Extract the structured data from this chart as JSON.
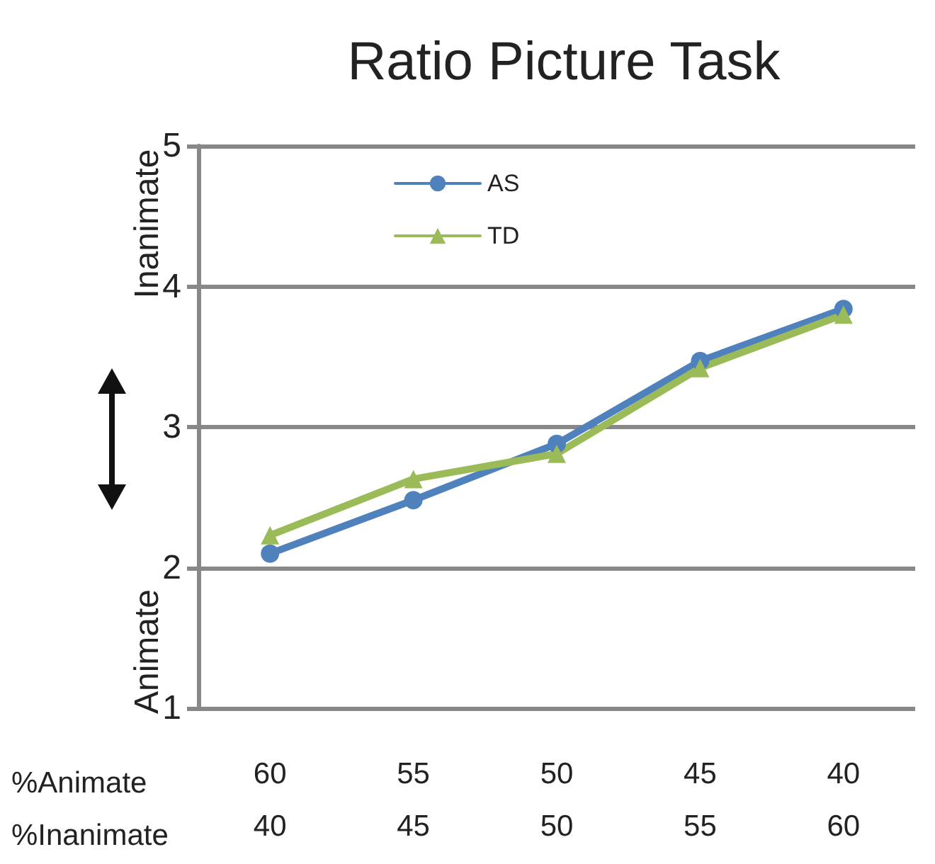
{
  "chart_data": {
    "type": "line",
    "title": "Ratio Picture Task",
    "categories": [
      "60\n40",
      "55\n45",
      "50\n50",
      "45\n55",
      "40\n60"
    ],
    "series": [
      {
        "name": "AS",
        "color": "#4f81bd",
        "marker": "circle",
        "values": [
          2.1,
          2.48,
          2.88,
          3.47,
          3.84
        ]
      },
      {
        "name": "TD",
        "color": "#9bbb59",
        "marker": "triangle",
        "values": [
          2.23,
          2.63,
          2.81,
          3.42,
          3.8
        ]
      }
    ],
    "ylim": [
      1,
      5
    ],
    "yticks": [
      1,
      2,
      3,
      4,
      5
    ],
    "grid": "y",
    "legend": "top left",
    "annotations": [
      "%Animate",
      "%Inanimate",
      "Inanimate",
      "Animate"
    ]
  }
}
